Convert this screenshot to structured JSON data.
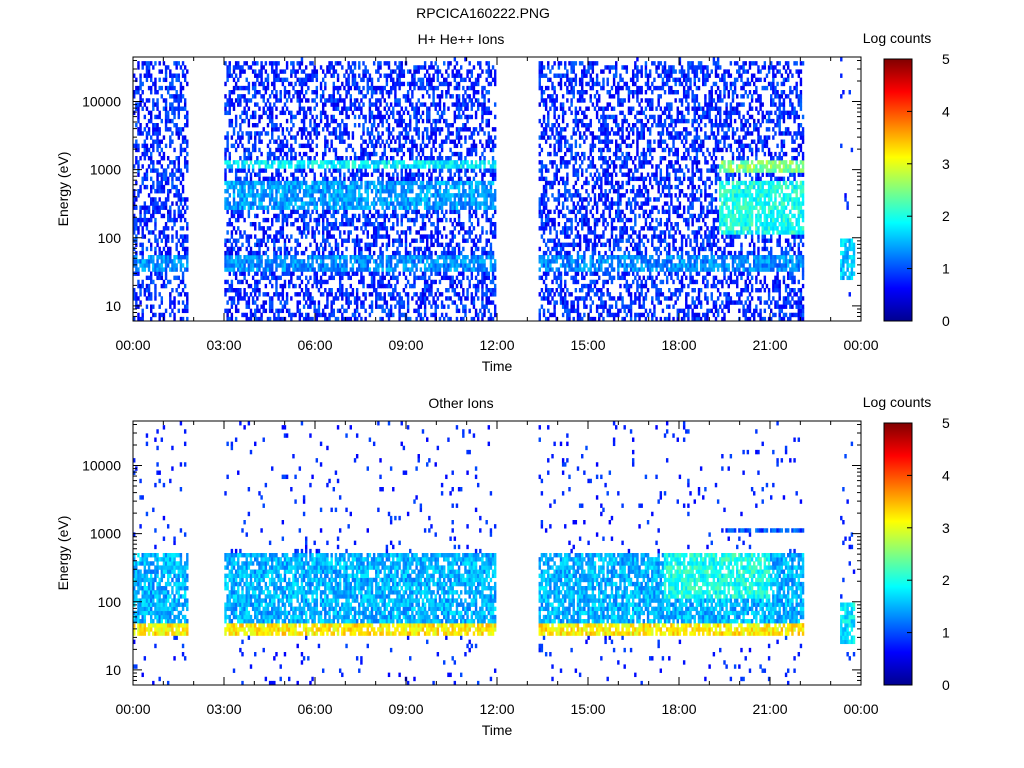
{
  "figure": {
    "title": "RPCICA160222.PNG"
  },
  "colorscale": {
    "stops": [
      "#00008f",
      "#0000ff",
      "#0080ff",
      "#00ffff",
      "#80ff80",
      "#ffff00",
      "#ff8000",
      "#ff0000",
      "#800000"
    ]
  },
  "chart_data": [
    {
      "type": "heatmap",
      "title": "H+ He++ Ions",
      "xlabel": "Time",
      "ylabel": "Energy (eV)",
      "x_ticks": [
        "00:00",
        "03:00",
        "06:00",
        "09:00",
        "12:00",
        "15:00",
        "18:00",
        "21:00",
        "00:00"
      ],
      "x_range_hours": [
        0,
        24
      ],
      "y_scale": "log",
      "y_range": [
        6,
        45000
      ],
      "y_ticks": [
        10,
        100,
        1000,
        10000
      ],
      "y_tick_labels": [
        "10",
        "100",
        "1000",
        "10000"
      ],
      "colorbar": {
        "title": "Log counts",
        "range": [
          0,
          5
        ],
        "ticks": [
          "0",
          "1",
          "2",
          "3",
          "4",
          "5"
        ]
      },
      "data_intervals_hours": [
        [
          0.0,
          1.8
        ],
        [
          3.0,
          11.95
        ],
        [
          13.35,
          22.1
        ],
        [
          23.3,
          23.8
        ]
      ],
      "features": [
        {
          "desc": "Background sparse noise",
          "t": [
            0,
            22.1
          ],
          "e": [
            6,
            40000
          ],
          "level": 0.8
        },
        {
          "desc": "Low-energy band",
          "t": [
            0,
            22.1
          ],
          "e": [
            30,
            55
          ],
          "level": 1.3
        },
        {
          "desc": "Band around 1 keV",
          "t": [
            3.0,
            11.95
          ],
          "e": [
            1000,
            1300
          ],
          "level": 1.8
        },
        {
          "desc": "Band around 1 keV",
          "t": [
            19.3,
            22.1
          ],
          "e": [
            950,
            1300
          ],
          "level": 2.5
        },
        {
          "desc": "Broad enhancement",
          "t": [
            19.3,
            22.1
          ],
          "e": [
            120,
            700
          ],
          "level": 2.0
        },
        {
          "desc": "Mid-energy activity",
          "t": [
            3.0,
            11.95
          ],
          "e": [
            250,
            700
          ],
          "level": 1.4
        },
        {
          "desc": "Last short interval",
          "t": [
            23.3,
            23.8
          ],
          "e": [
            25,
            95
          ],
          "level": 1.6
        }
      ]
    },
    {
      "type": "heatmap",
      "title": "Other Ions",
      "xlabel": "Time",
      "ylabel": "Energy (eV)",
      "x_ticks": [
        "00:00",
        "03:00",
        "06:00",
        "09:00",
        "12:00",
        "15:00",
        "18:00",
        "21:00",
        "00:00"
      ],
      "x_range_hours": [
        0,
        24
      ],
      "y_scale": "log",
      "y_range": [
        6,
        45000
      ],
      "y_ticks": [
        10,
        100,
        1000,
        10000
      ],
      "y_tick_labels": [
        "10",
        "100",
        "1000",
        "10000"
      ],
      "colorbar": {
        "title": "Log counts",
        "range": [
          0,
          5
        ],
        "ticks": [
          "0",
          "1",
          "2",
          "3",
          "4",
          "5"
        ]
      },
      "data_intervals_hours": [
        [
          0.0,
          1.8
        ],
        [
          3.0,
          11.95
        ],
        [
          13.35,
          22.1
        ],
        [
          23.3,
          23.8
        ]
      ],
      "features": [
        {
          "desc": "Intense low-energy band",
          "t": [
            0,
            22.1
          ],
          "e": [
            30,
            48
          ],
          "level": 3.2
        },
        {
          "desc": "Medium-energy spread",
          "t": [
            0,
            22.1
          ],
          "e": [
            50,
            500
          ],
          "level": 1.5
        },
        {
          "desc": "Enhanced medium-energy",
          "t": [
            17.5,
            21.0
          ],
          "e": [
            120,
            500
          ],
          "level": 2.0
        },
        {
          "desc": "Band around 1 keV",
          "t": [
            19.5,
            22.1
          ],
          "e": [
            1000,
            1200
          ],
          "level": 1.0
        },
        {
          "desc": "Last short interval",
          "t": [
            23.3,
            23.8
          ],
          "e": [
            25,
            95
          ],
          "level": 1.8
        }
      ]
    }
  ]
}
